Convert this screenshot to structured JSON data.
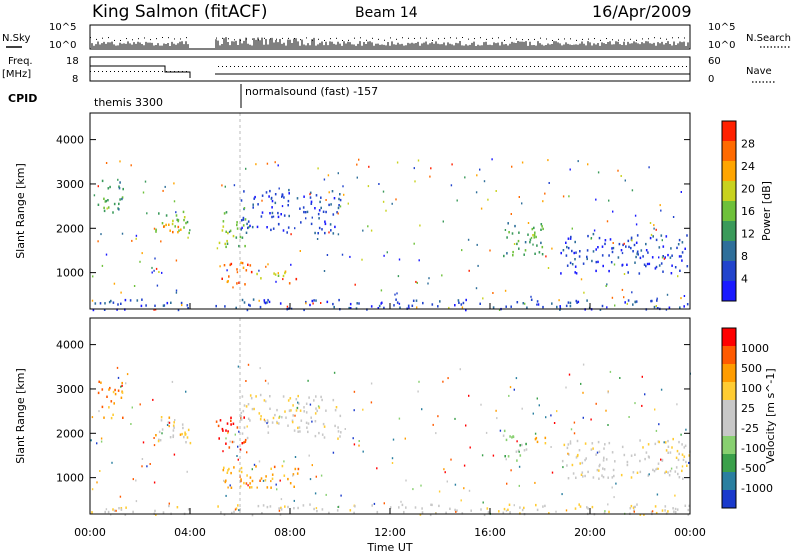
{
  "header": {
    "title": "King Salmon (fitACF)",
    "beam": "Beam 14",
    "date": "16/Apr/2009"
  },
  "aux_labels": {
    "nsky": "N.Sky",
    "nsearch": "N.Search",
    "freq_1": "Freq.",
    "freq_2": "[MHz]",
    "nave": "Nave",
    "cpid": "CPID",
    "noise_hi": "10^5",
    "noise_lo": "10^0",
    "freq_hi": "18",
    "freq_lo": "8",
    "nave_hi": "60",
    "nave_lo": "0",
    "cpid_1": "themis 3300",
    "cpid_2": "normalsound (fast) -157"
  },
  "colors": {
    "power_scale": [
      "#1a1aff",
      "#2244cc",
      "#2f6f9a",
      "#3a9a5a",
      "#6ec13a",
      "#c8d21e",
      "#ffa500",
      "#ff6a00",
      "#ff2000"
    ],
    "velocity_scale": [
      "#ff0000",
      "#ff5a00",
      "#ff9c00",
      "#ffcc33",
      "#c8c8c8",
      "#c8c8c8",
      "#88d070",
      "#3aa04a",
      "#2a7fa0",
      "#1a3acc"
    ]
  },
  "chart_data": [
    {
      "type": "heatmap",
      "name": "power",
      "xlabel": "Time UT",
      "ylabel": "Slant Range [km]",
      "xlim": [
        0,
        24
      ],
      "ylim": [
        180,
        4600
      ],
      "xticks": [
        "00:00",
        "04:00",
        "08:00",
        "12:00",
        "16:00",
        "20:00",
        "00:00"
      ],
      "yticks": [
        1000,
        2000,
        3000,
        4000
      ],
      "colorbar_label": "Power [dB]",
      "colorbar_ticks": [
        "4",
        "8",
        "12",
        "16",
        "20",
        "24",
        "28"
      ],
      "clim": [
        0,
        32
      ],
      "data_gap_hours": [
        4.0,
        5.0
      ],
      "mode_change_hour": 6.0,
      "regions": [
        {
          "t0": 0.3,
          "t1": 1.3,
          "r0": 2300,
          "r1": 3200,
          "level": 3
        },
        {
          "t0": 2.6,
          "t1": 4.0,
          "r0": 1800,
          "r1": 2400,
          "level": 4
        },
        {
          "t0": 2.8,
          "t1": 3.8,
          "r0": 1900,
          "r1": 2200,
          "level": 6
        },
        {
          "t0": 5.0,
          "t1": 6.2,
          "r0": 1600,
          "r1": 2400,
          "level": 4
        },
        {
          "t0": 5.2,
          "t1": 6.5,
          "r0": 750,
          "r1": 1300,
          "level": 7
        },
        {
          "t0": 6.5,
          "t1": 7.8,
          "r0": 850,
          "r1": 1100,
          "level": 5
        },
        {
          "t0": 7.8,
          "t1": 8.4,
          "r0": 780,
          "r1": 920,
          "level": 8
        },
        {
          "t0": 6.0,
          "t1": 10.0,
          "r0": 1900,
          "r1": 2900,
          "level": 1
        },
        {
          "t0": 16.5,
          "t1": 18.2,
          "r0": 1400,
          "r1": 2200,
          "level": 3
        },
        {
          "t0": 17.6,
          "t1": 18.0,
          "r0": 1750,
          "r1": 2000,
          "level": 5
        },
        {
          "t0": 18.8,
          "t1": 24.0,
          "r0": 1000,
          "r1": 1900,
          "level": 1
        },
        {
          "t0": 0.0,
          "t1": 24.0,
          "r0": 180,
          "r1": 420,
          "level": 1
        }
      ]
    },
    {
      "type": "heatmap",
      "name": "velocity",
      "xlabel": "Time UT",
      "ylabel": "Slant Range [km]",
      "xlim": [
        0,
        24
      ],
      "ylim": [
        180,
        4600
      ],
      "xticks": [
        "00:00",
        "04:00",
        "08:00",
        "12:00",
        "16:00",
        "20:00",
        "00:00"
      ],
      "yticks": [
        1000,
        2000,
        3000,
        4000
      ],
      "colorbar_label": "Velocity [m s^-1]",
      "colorbar_ticks": [
        "1000",
        "500",
        "100",
        "25",
        "-25",
        "-100",
        "-500",
        "-1000"
      ],
      "data_gap_hours": [
        4.0,
        5.0
      ],
      "mode_change_hour": 6.0,
      "regions": [
        {
          "t0": 0.3,
          "t1": 1.3,
          "r0": 2300,
          "r1": 3200,
          "level": 2
        },
        {
          "t0": 2.6,
          "t1": 4.0,
          "r0": 1800,
          "r1": 2400,
          "level": 3
        },
        {
          "t0": 2.8,
          "t1": 3.8,
          "r0": 1900,
          "r1": 2200,
          "level": 4
        },
        {
          "t0": 5.0,
          "t1": 6.2,
          "r0": 1600,
          "r1": 2400,
          "level": 0
        },
        {
          "t0": 5.2,
          "t1": 8.4,
          "r0": 750,
          "r1": 1300,
          "level": 2
        },
        {
          "t0": 6.0,
          "t1": 10.0,
          "r0": 1900,
          "r1": 2900,
          "level": 4
        },
        {
          "t0": 16.5,
          "t1": 17.5,
          "r0": 1400,
          "r1": 2100,
          "level": 6
        },
        {
          "t0": 17.5,
          "t1": 18.2,
          "r0": 1700,
          "r1": 2000,
          "level": 2
        },
        {
          "t0": 18.8,
          "t1": 24.0,
          "r0": 1000,
          "r1": 1900,
          "level": 4
        },
        {
          "t0": 0.0,
          "t1": 24.0,
          "r0": 180,
          "r1": 420,
          "level": 4
        }
      ]
    }
  ]
}
